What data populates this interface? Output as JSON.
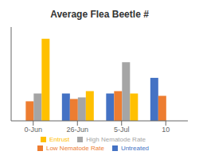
{
  "chart_data": {
    "type": "bar",
    "title": "Average Flea Beetle #",
    "categories": [
      "0-Jun",
      "26-Jun",
      "5-Jul",
      "10"
    ],
    "series": [
      {
        "name": "Untreated",
        "color": "#4472C4",
        "values": [
          0,
          3.5,
          3.5,
          5.5
        ]
      },
      {
        "name": "Low Nematode Rate",
        "color": "#ED7D31",
        "values": [
          2.5,
          2.8,
          3.8,
          3.2
        ]
      },
      {
        "name": "High Nematode Rate",
        "color": "#A5A5A5",
        "values": [
          3.5,
          3.0,
          7.5,
          0
        ]
      },
      {
        "name": "Entrust",
        "color": "#FFC000",
        "values": [
          10.5,
          3.8,
          3.5,
          0
        ]
      }
    ],
    "ylim": [
      0,
      12
    ],
    "grid": false,
    "legend": "bottom",
    "tick_labels": "x"
  }
}
